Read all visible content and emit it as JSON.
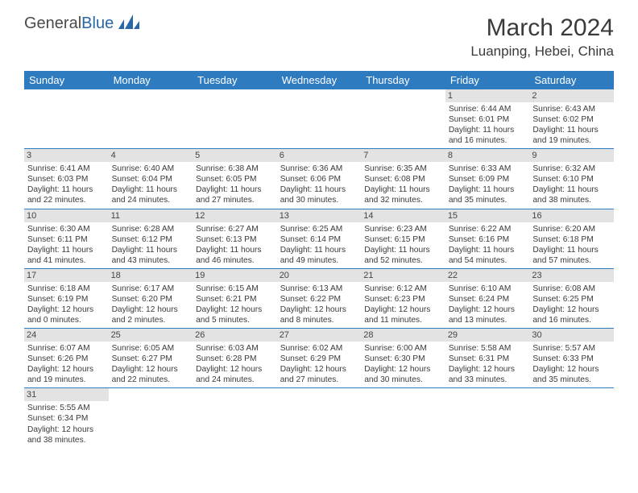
{
  "logo": {
    "text1": "General",
    "text2": "Blue"
  },
  "title": "March 2024",
  "location": "Luanping, Hebei, China",
  "colors": {
    "header_bg": "#2f7bbf",
    "header_text": "#ffffff",
    "daynum_bg": "#e3e3e3",
    "border": "#2f7bbf",
    "text": "#3a3a3a",
    "logo_blue": "#2968a8"
  },
  "day_headers": [
    "Sunday",
    "Monday",
    "Tuesday",
    "Wednesday",
    "Thursday",
    "Friday",
    "Saturday"
  ],
  "weeks": [
    [
      {
        "n": "",
        "empty": true
      },
      {
        "n": "",
        "empty": true
      },
      {
        "n": "",
        "empty": true
      },
      {
        "n": "",
        "empty": true
      },
      {
        "n": "",
        "empty": true
      },
      {
        "n": "1",
        "sr": "Sunrise: 6:44 AM",
        "ss": "Sunset: 6:01 PM",
        "d1": "Daylight: 11 hours",
        "d2": "and 16 minutes."
      },
      {
        "n": "2",
        "sr": "Sunrise: 6:43 AM",
        "ss": "Sunset: 6:02 PM",
        "d1": "Daylight: 11 hours",
        "d2": "and 19 minutes."
      }
    ],
    [
      {
        "n": "3",
        "sr": "Sunrise: 6:41 AM",
        "ss": "Sunset: 6:03 PM",
        "d1": "Daylight: 11 hours",
        "d2": "and 22 minutes."
      },
      {
        "n": "4",
        "sr": "Sunrise: 6:40 AM",
        "ss": "Sunset: 6:04 PM",
        "d1": "Daylight: 11 hours",
        "d2": "and 24 minutes."
      },
      {
        "n": "5",
        "sr": "Sunrise: 6:38 AM",
        "ss": "Sunset: 6:05 PM",
        "d1": "Daylight: 11 hours",
        "d2": "and 27 minutes."
      },
      {
        "n": "6",
        "sr": "Sunrise: 6:36 AM",
        "ss": "Sunset: 6:06 PM",
        "d1": "Daylight: 11 hours",
        "d2": "and 30 minutes."
      },
      {
        "n": "7",
        "sr": "Sunrise: 6:35 AM",
        "ss": "Sunset: 6:08 PM",
        "d1": "Daylight: 11 hours",
        "d2": "and 32 minutes."
      },
      {
        "n": "8",
        "sr": "Sunrise: 6:33 AM",
        "ss": "Sunset: 6:09 PM",
        "d1": "Daylight: 11 hours",
        "d2": "and 35 minutes."
      },
      {
        "n": "9",
        "sr": "Sunrise: 6:32 AM",
        "ss": "Sunset: 6:10 PM",
        "d1": "Daylight: 11 hours",
        "d2": "and 38 minutes."
      }
    ],
    [
      {
        "n": "10",
        "sr": "Sunrise: 6:30 AM",
        "ss": "Sunset: 6:11 PM",
        "d1": "Daylight: 11 hours",
        "d2": "and 41 minutes."
      },
      {
        "n": "11",
        "sr": "Sunrise: 6:28 AM",
        "ss": "Sunset: 6:12 PM",
        "d1": "Daylight: 11 hours",
        "d2": "and 43 minutes."
      },
      {
        "n": "12",
        "sr": "Sunrise: 6:27 AM",
        "ss": "Sunset: 6:13 PM",
        "d1": "Daylight: 11 hours",
        "d2": "and 46 minutes."
      },
      {
        "n": "13",
        "sr": "Sunrise: 6:25 AM",
        "ss": "Sunset: 6:14 PM",
        "d1": "Daylight: 11 hours",
        "d2": "and 49 minutes."
      },
      {
        "n": "14",
        "sr": "Sunrise: 6:23 AM",
        "ss": "Sunset: 6:15 PM",
        "d1": "Daylight: 11 hours",
        "d2": "and 52 minutes."
      },
      {
        "n": "15",
        "sr": "Sunrise: 6:22 AM",
        "ss": "Sunset: 6:16 PM",
        "d1": "Daylight: 11 hours",
        "d2": "and 54 minutes."
      },
      {
        "n": "16",
        "sr": "Sunrise: 6:20 AM",
        "ss": "Sunset: 6:18 PM",
        "d1": "Daylight: 11 hours",
        "d2": "and 57 minutes."
      }
    ],
    [
      {
        "n": "17",
        "sr": "Sunrise: 6:18 AM",
        "ss": "Sunset: 6:19 PM",
        "d1": "Daylight: 12 hours",
        "d2": "and 0 minutes."
      },
      {
        "n": "18",
        "sr": "Sunrise: 6:17 AM",
        "ss": "Sunset: 6:20 PM",
        "d1": "Daylight: 12 hours",
        "d2": "and 2 minutes."
      },
      {
        "n": "19",
        "sr": "Sunrise: 6:15 AM",
        "ss": "Sunset: 6:21 PM",
        "d1": "Daylight: 12 hours",
        "d2": "and 5 minutes."
      },
      {
        "n": "20",
        "sr": "Sunrise: 6:13 AM",
        "ss": "Sunset: 6:22 PM",
        "d1": "Daylight: 12 hours",
        "d2": "and 8 minutes."
      },
      {
        "n": "21",
        "sr": "Sunrise: 6:12 AM",
        "ss": "Sunset: 6:23 PM",
        "d1": "Daylight: 12 hours",
        "d2": "and 11 minutes."
      },
      {
        "n": "22",
        "sr": "Sunrise: 6:10 AM",
        "ss": "Sunset: 6:24 PM",
        "d1": "Daylight: 12 hours",
        "d2": "and 13 minutes."
      },
      {
        "n": "23",
        "sr": "Sunrise: 6:08 AM",
        "ss": "Sunset: 6:25 PM",
        "d1": "Daylight: 12 hours",
        "d2": "and 16 minutes."
      }
    ],
    [
      {
        "n": "24",
        "sr": "Sunrise: 6:07 AM",
        "ss": "Sunset: 6:26 PM",
        "d1": "Daylight: 12 hours",
        "d2": "and 19 minutes."
      },
      {
        "n": "25",
        "sr": "Sunrise: 6:05 AM",
        "ss": "Sunset: 6:27 PM",
        "d1": "Daylight: 12 hours",
        "d2": "and 22 minutes."
      },
      {
        "n": "26",
        "sr": "Sunrise: 6:03 AM",
        "ss": "Sunset: 6:28 PM",
        "d1": "Daylight: 12 hours",
        "d2": "and 24 minutes."
      },
      {
        "n": "27",
        "sr": "Sunrise: 6:02 AM",
        "ss": "Sunset: 6:29 PM",
        "d1": "Daylight: 12 hours",
        "d2": "and 27 minutes."
      },
      {
        "n": "28",
        "sr": "Sunrise: 6:00 AM",
        "ss": "Sunset: 6:30 PM",
        "d1": "Daylight: 12 hours",
        "d2": "and 30 minutes."
      },
      {
        "n": "29",
        "sr": "Sunrise: 5:58 AM",
        "ss": "Sunset: 6:31 PM",
        "d1": "Daylight: 12 hours",
        "d2": "and 33 minutes."
      },
      {
        "n": "30",
        "sr": "Sunrise: 5:57 AM",
        "ss": "Sunset: 6:33 PM",
        "d1": "Daylight: 12 hours",
        "d2": "and 35 minutes."
      }
    ],
    [
      {
        "n": "31",
        "sr": "Sunrise: 5:55 AM",
        "ss": "Sunset: 6:34 PM",
        "d1": "Daylight: 12 hours",
        "d2": "and 38 minutes."
      },
      {
        "n": "",
        "empty": true
      },
      {
        "n": "",
        "empty": true
      },
      {
        "n": "",
        "empty": true
      },
      {
        "n": "",
        "empty": true
      },
      {
        "n": "",
        "empty": true
      },
      {
        "n": "",
        "empty": true
      }
    ]
  ]
}
